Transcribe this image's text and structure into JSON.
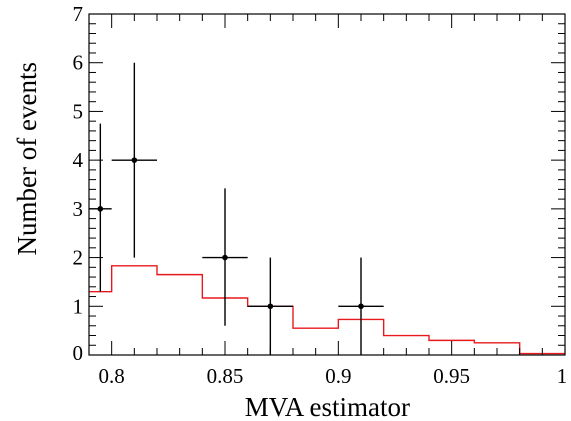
{
  "chart_data": {
    "type": "histogram",
    "xlabel": "MVA estimator",
    "ylabel": "Number of events",
    "xlim": [
      0.79,
      1.0
    ],
    "ylim": [
      0,
      7
    ],
    "x_ticks": [
      {
        "value": 0.8,
        "label": "0.8"
      },
      {
        "value": 0.85,
        "label": "0.85"
      },
      {
        "value": 0.9,
        "label": "0.9"
      },
      {
        "value": 0.95,
        "label": "0.95"
      },
      {
        "value": 1.0,
        "label": "1"
      }
    ],
    "y_ticks": [
      {
        "value": 0,
        "label": "0"
      },
      {
        "value": 1,
        "label": "1"
      },
      {
        "value": 2,
        "label": "2"
      },
      {
        "value": 3,
        "label": "3"
      },
      {
        "value": 4,
        "label": "4"
      },
      {
        "value": 5,
        "label": "5"
      },
      {
        "value": 6,
        "label": "6"
      },
      {
        "value": 7,
        "label": "7"
      }
    ],
    "series": [
      {
        "kind": "step",
        "color": "#e8191c",
        "bin_edges": [
          0.79,
          0.8,
          0.82,
          0.84,
          0.86,
          0.88,
          0.9,
          0.92,
          0.94,
          0.96,
          0.98,
          1.0
        ],
        "values": [
          1.3,
          1.83,
          1.65,
          1.17,
          1.0,
          0.55,
          0.73,
          0.4,
          0.3,
          0.25,
          0.03
        ]
      },
      {
        "kind": "errorbar",
        "color": "#000000",
        "points": [
          {
            "x": 0.795,
            "y": 3,
            "xerr": 0.005,
            "yerr_low": 1.7,
            "yerr_high": 1.75
          },
          {
            "x": 0.81,
            "y": 4,
            "xerr": 0.01,
            "yerr_low": 2.0,
            "yerr_high": 2.0
          },
          {
            "x": 0.85,
            "y": 2,
            "xerr": 0.01,
            "yerr_low": 1.4,
            "yerr_high": 1.42
          },
          {
            "x": 0.87,
            "y": 1,
            "xerr": 0.01,
            "yerr_low": 1.0,
            "yerr_high": 1.0
          },
          {
            "x": 0.91,
            "y": 1,
            "xerr": 0.01,
            "yerr_low": 1.0,
            "yerr_high": 1.0
          }
        ]
      }
    ]
  },
  "colors": {
    "axis": "#000000",
    "background": "#ffffff"
  }
}
